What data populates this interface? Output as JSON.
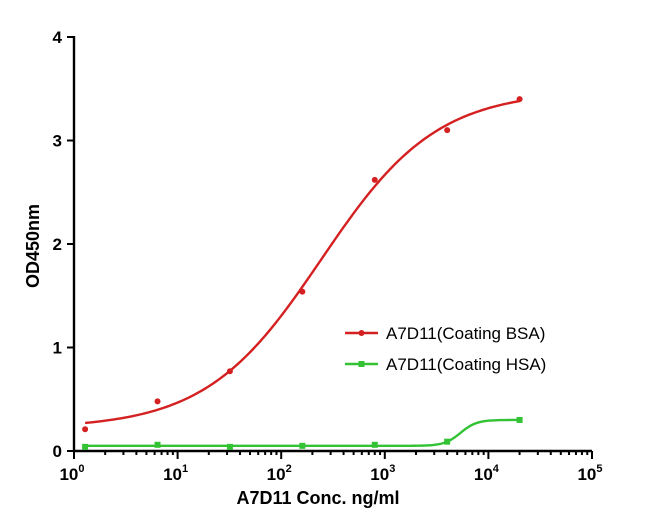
{
  "chart_data": {
    "type": "scatter",
    "xscale": "log",
    "xlabel": "A7D11 Conc. ng/ml",
    "ylabel": "OD450nm",
    "xlim": [
      1,
      100000
    ],
    "ylim": [
      0,
      4
    ],
    "yticks": [
      "0",
      "1",
      "2",
      "3",
      "4"
    ],
    "xticks": [
      {
        "base": "10",
        "exp": "0"
      },
      {
        "base": "10",
        "exp": "1"
      },
      {
        "base": "10",
        "exp": "2"
      },
      {
        "base": "10",
        "exp": "3"
      },
      {
        "base": "10",
        "exp": "4"
      },
      {
        "base": "10",
        "exp": "5"
      }
    ],
    "grid": false,
    "legend_position": "right",
    "series": [
      {
        "name": "A7D11(Coating BSA)",
        "color": "#d42020",
        "marker": "circle",
        "x": [
          1.28,
          6.4,
          32,
          160,
          800,
          4000,
          20000
        ],
        "y": [
          0.21,
          0.48,
          0.77,
          1.54,
          2.62,
          3.1,
          3.4
        ]
      },
      {
        "name": "A7D11(Coating HSA)",
        "color": "#33c233",
        "marker": "square",
        "x": [
          1.28,
          6.4,
          32,
          160,
          800,
          4000,
          20000
        ],
        "y": [
          0.04,
          0.06,
          0.04,
          0.05,
          0.06,
          0.09,
          0.3
        ]
      }
    ]
  }
}
